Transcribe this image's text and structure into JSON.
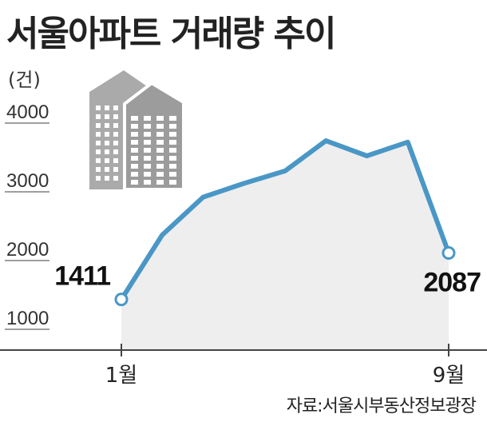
{
  "title": "서울아파트 거래량 추이",
  "unit": "(건)",
  "source": "자료:서울시부동산정보광장",
  "colors": {
    "line": "#4a97c6",
    "area": "#eeeeef",
    "building": "#aaaaaa",
    "axis": "#444444"
  },
  "icon": "apartment-buildings-icon",
  "chart_data": {
    "type": "area",
    "title": "서울아파트 거래량 추이",
    "ylabel": "(건)",
    "ylim": [
      1000,
      4000
    ],
    "yticks": [
      "4000",
      "3000",
      "2000",
      "1000"
    ],
    "xtick_labels": {
      "1": "1월",
      "9": "9월"
    },
    "x": [
      1,
      2,
      3,
      4,
      5,
      6,
      7,
      8,
      9
    ],
    "values": [
      1411,
      2350,
      2900,
      3100,
      3280,
      3720,
      3500,
      3700,
      2087
    ],
    "data_labels": {
      "first": "1411",
      "last": "2087"
    }
  }
}
